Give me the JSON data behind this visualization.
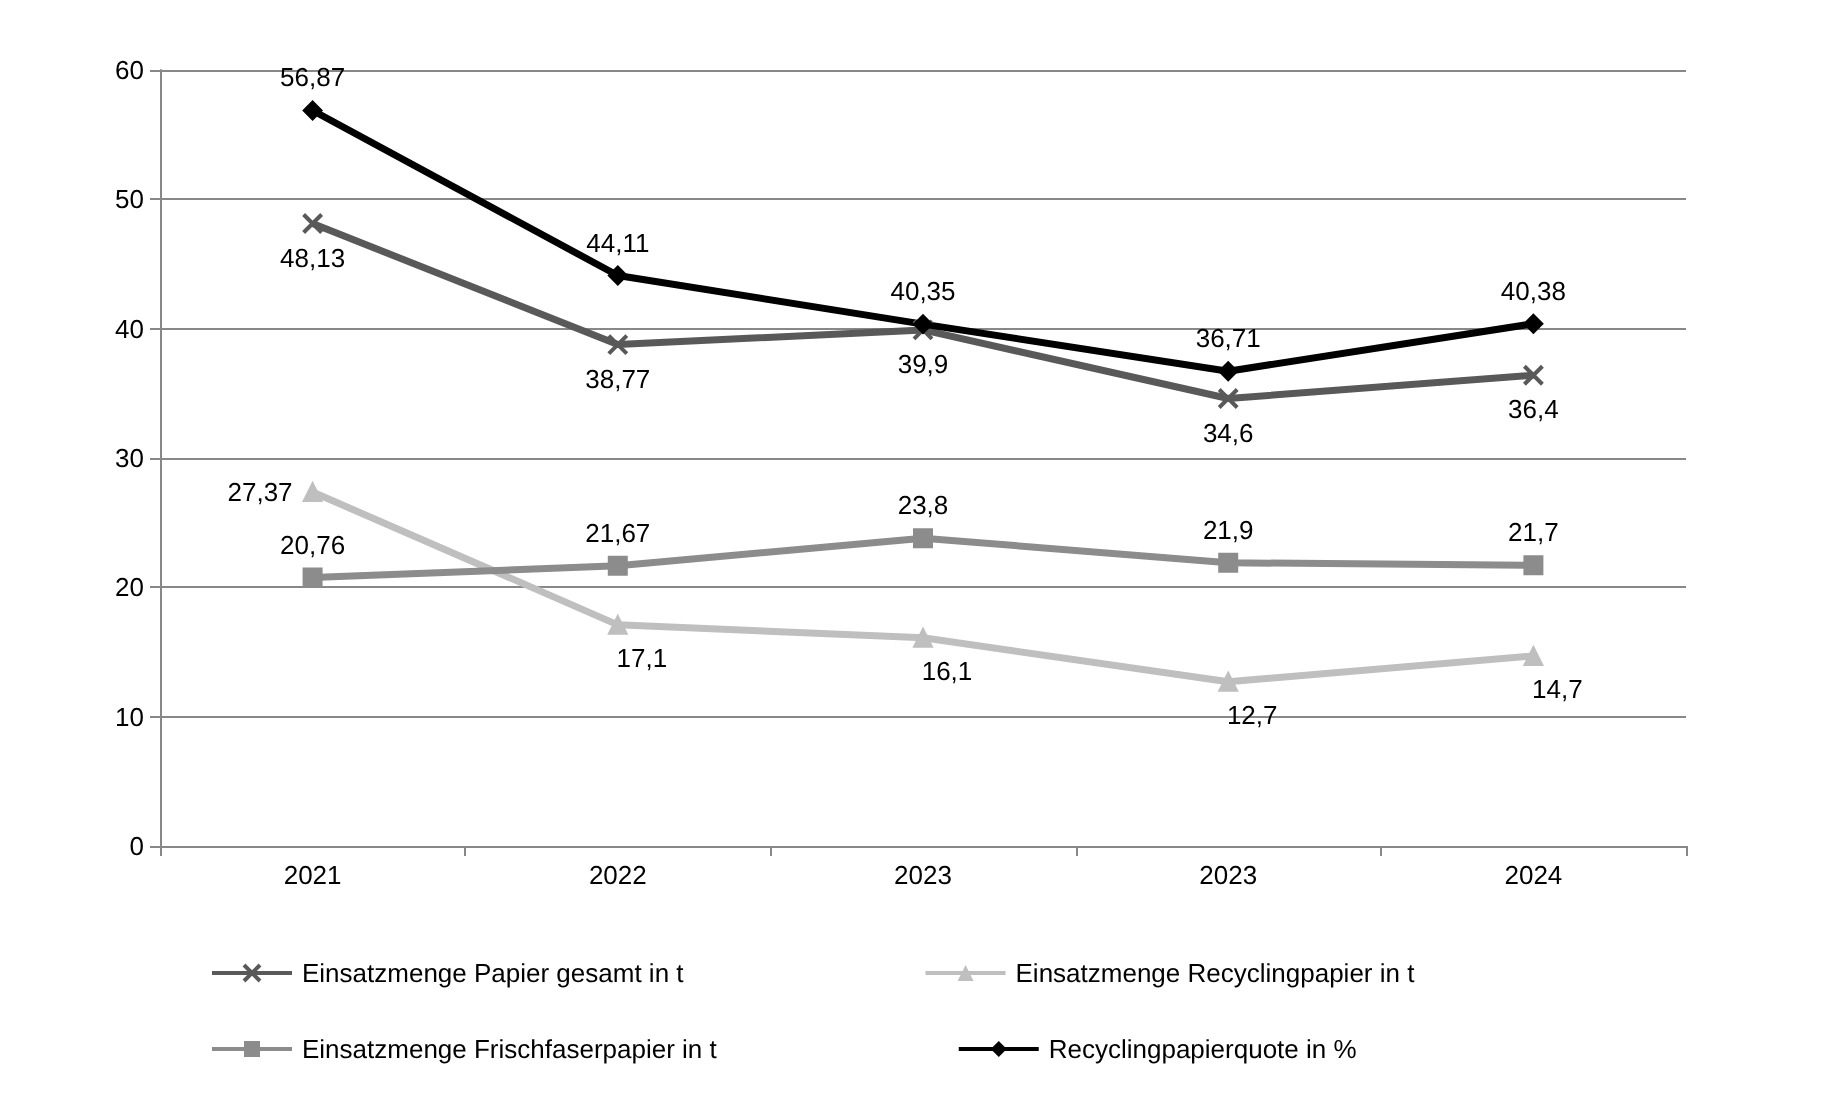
{
  "chart_data": {
    "type": "line",
    "categories": [
      "2021",
      "2022",
      "2023",
      "2023",
      "2024"
    ],
    "series": [
      {
        "name": "Einsatzmenge Papier gesamt in t",
        "color": "#595959",
        "marker": "cross",
        "values": [
          48.13,
          38.77,
          39.9,
          34.6,
          36.4
        ],
        "value_labels": [
          "48,13",
          "38,77",
          "39,9",
          "34,6",
          "36,4"
        ]
      },
      {
        "name": "Einsatzmenge Recyclingpapier in t",
        "color": "#bfbfbf",
        "marker": "triangle",
        "values": [
          27.37,
          17.1,
          16.1,
          12.7,
          14.7
        ],
        "value_labels": [
          "27,37",
          "17,1",
          "16,1",
          "12,7",
          "14,7"
        ]
      },
      {
        "name": "Einsatzmenge Frischfaserpapier in t",
        "color": "#8c8c8c",
        "marker": "square",
        "values": [
          20.76,
          21.67,
          23.8,
          21.9,
          21.7
        ],
        "value_labels": [
          "20,76",
          "21,67",
          "23,8",
          "21,9",
          "21,7"
        ]
      },
      {
        "name": "Recyclingpapierquote in %",
        "color": "#000000",
        "marker": "diamond",
        "values": [
          56.87,
          44.11,
          40.35,
          36.71,
          40.38
        ],
        "value_labels": [
          "56,87",
          "44,11",
          "40,35",
          "36,71",
          "40,38"
        ]
      }
    ],
    "ylim": [
      0,
      60
    ],
    "yticks": [
      0,
      10,
      20,
      30,
      40,
      50,
      60
    ],
    "grid": "y",
    "legend": "bottom",
    "line_style": "solid"
  }
}
